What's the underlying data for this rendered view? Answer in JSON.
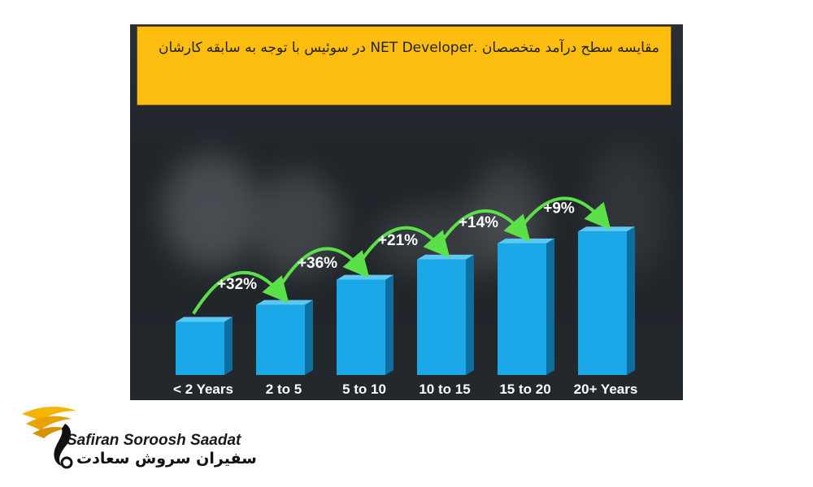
{
  "header": {
    "title": "مقایسه سطح درآمد متخصصان .NET Developer در سوئیس با توجه به سابقه کارشان"
  },
  "chart_data": {
    "type": "bar",
    "categories": [
      "< 2 Years",
      "2 to 5",
      "5 to 10",
      "10 to 15",
      "15 to 20",
      "20+ Years"
    ],
    "values": [
      2.3,
      3.03,
      4.12,
      4.99,
      5.69,
      6.2
    ],
    "increments": [
      "+32%",
      "+36%",
      "+21%",
      "+14%",
      "+9%"
    ],
    "colors": {
      "bar": "#1aa8e8",
      "bar_side": "#0d6fa0",
      "bar_top": "#5cc8f5",
      "arrow": "#5ce04a",
      "banner": "#fdbd0e"
    }
  },
  "brand": {
    "name_en": "Safiran Soroosh Saadat",
    "name_fa": "سفیران سروش سعادت"
  }
}
